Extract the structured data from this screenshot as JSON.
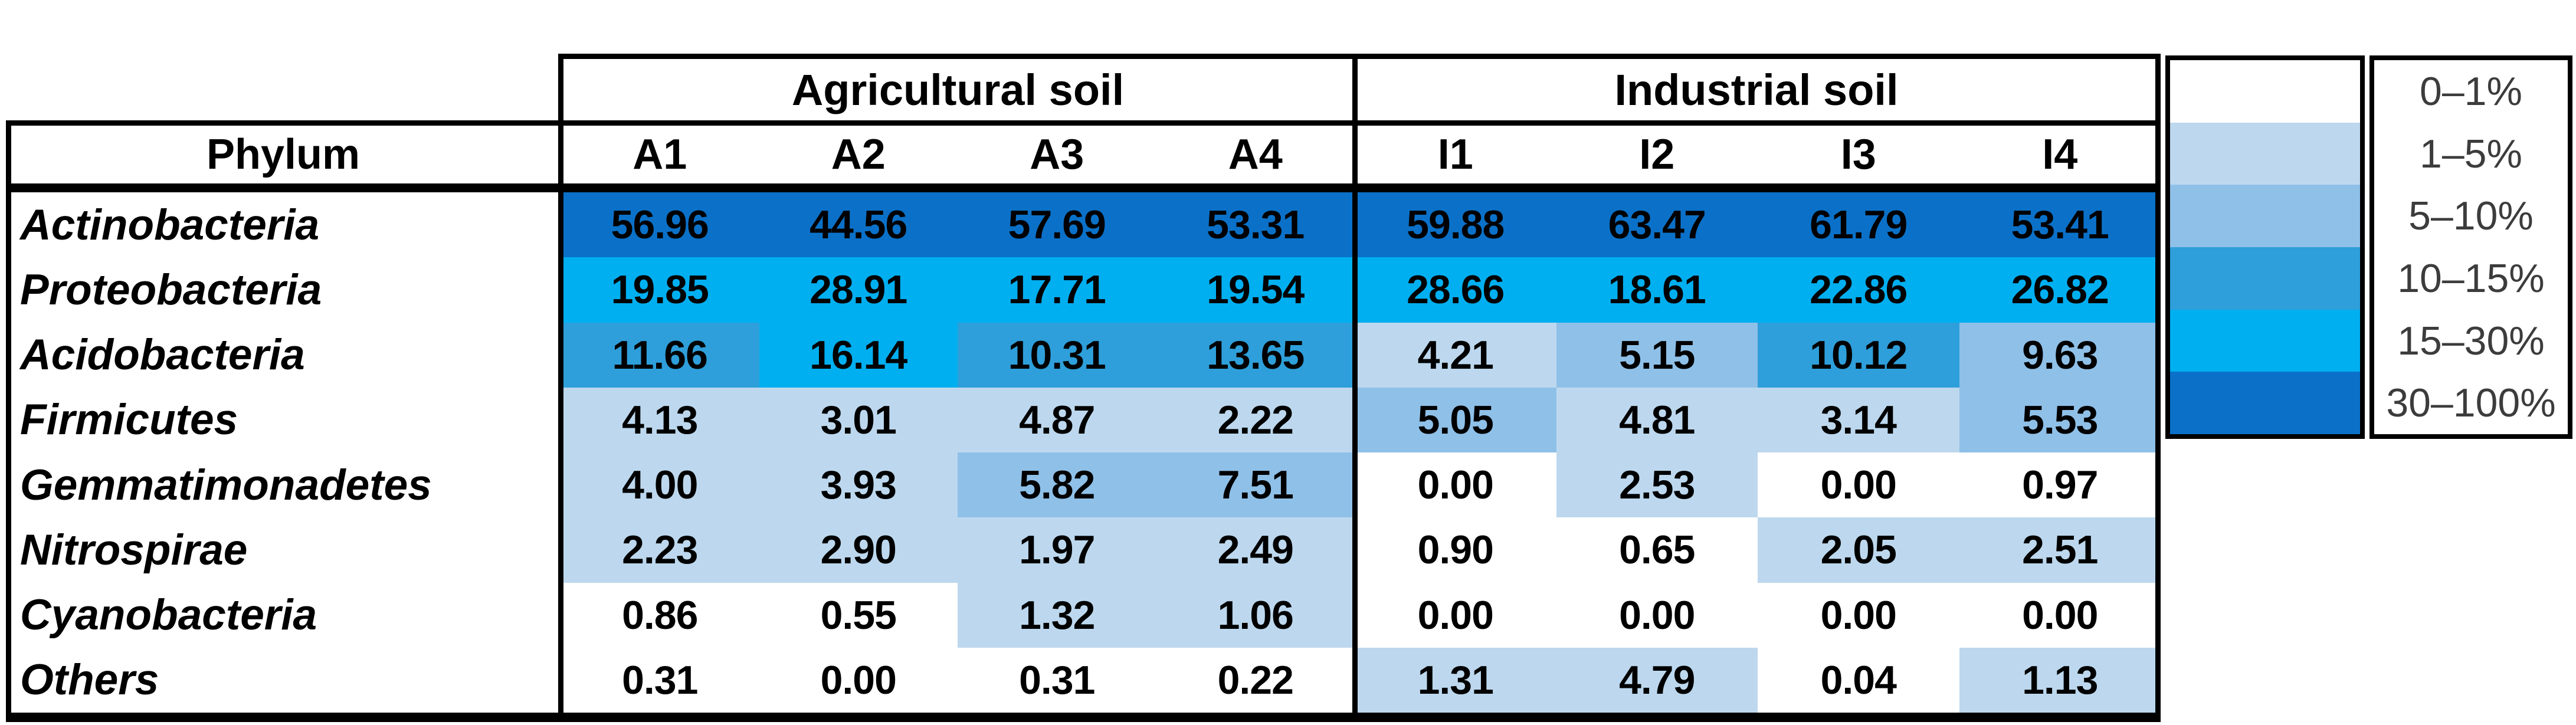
{
  "chart_data": {
    "type": "heatmap",
    "row_header": "Phylum",
    "col_groups": [
      {
        "label": "Agricultural soil"
      },
      {
        "label": "Industrial soil"
      }
    ],
    "columns": [
      "A1",
      "A2",
      "A3",
      "A4",
      "I1",
      "I2",
      "I3",
      "I4"
    ],
    "rows": [
      {
        "phylum": "Actinobacteria",
        "values": [
          "56.96",
          "44.56",
          "57.69",
          "53.31",
          "59.88",
          "63.47",
          "61.79",
          "53.41"
        ]
      },
      {
        "phylum": "Proteobacteria",
        "values": [
          "19.85",
          "28.91",
          "17.71",
          "19.54",
          "28.66",
          "18.61",
          "22.86",
          "26.82"
        ]
      },
      {
        "phylum": "Acidobacteria",
        "values": [
          "11.66",
          "16.14",
          "10.31",
          "13.65",
          "4.21",
          "5.15",
          "10.12",
          "9.63"
        ]
      },
      {
        "phylum": "Firmicutes",
        "values": [
          "4.13",
          "3.01",
          "4.87",
          "2.22",
          "5.05",
          "4.81",
          "3.14",
          "5.53"
        ]
      },
      {
        "phylum": "Gemmatimonadetes",
        "values": [
          "4.00",
          "3.93",
          "5.82",
          "7.51",
          "0.00",
          "2.53",
          "0.00",
          "0.97"
        ]
      },
      {
        "phylum": "Nitrospirae",
        "values": [
          "2.23",
          "2.90",
          "1.97",
          "2.49",
          "0.90",
          "0.65",
          "2.05",
          "2.51"
        ]
      },
      {
        "phylum": "Cyanobacteria",
        "values": [
          "0.86",
          "0.55",
          "1.32",
          "1.06",
          "0.00",
          "0.00",
          "0.00",
          "0.00"
        ]
      },
      {
        "phylum": "Others",
        "values": [
          "0.31",
          "0.00",
          "0.31",
          "0.22",
          "1.31",
          "4.79",
          "0.04",
          "1.13"
        ]
      }
    ],
    "legend": {
      "position": "right",
      "bins": [
        {
          "label": "0–1%",
          "max": 1,
          "color": "#FFFFFF"
        },
        {
          "label": "1–5%",
          "max": 5,
          "color": "#BDD8EE"
        },
        {
          "label": "5–10%",
          "max": 10,
          "color": "#8FC0E8"
        },
        {
          "label": "10–15%",
          "max": 15,
          "color": "#2E9FDA"
        },
        {
          "label": "15–30%",
          "max": 30,
          "color": "#00AFF0"
        },
        {
          "label": "30–100%",
          "max": 100,
          "color": "#0B71C8"
        }
      ]
    }
  },
  "colors": {
    "border": "#000000",
    "legend_text": "#3C3C3C",
    "cell_text": "#000000"
  }
}
